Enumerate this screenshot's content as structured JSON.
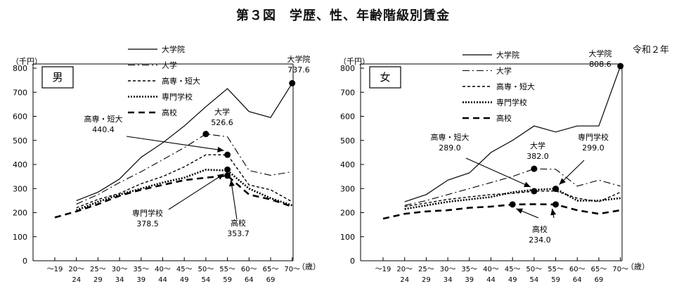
{
  "figure_title": "第３図　学歴、性、年齢階級別賃金",
  "era_label": "令和２年",
  "chart_data": [
    {
      "type": "line",
      "panel_label": "男",
      "ylabel": "（千円）",
      "xlabel": "（歳）",
      "ylim": [
        0,
        800
      ],
      "yticks": [
        0,
        100,
        200,
        300,
        400,
        500,
        600,
        700,
        800
      ],
      "categories": [
        [
          "～19",
          ""
        ],
        [
          "20～",
          "24"
        ],
        [
          "25～",
          "29"
        ],
        [
          "30～",
          "34"
        ],
        [
          "35～",
          "39"
        ],
        [
          "40～",
          "44"
        ],
        [
          "45～",
          "49"
        ],
        [
          "50～",
          "54"
        ],
        [
          "55～",
          "59"
        ],
        [
          "60～",
          "64"
        ],
        [
          "65～",
          "69"
        ],
        [
          "70～",
          ""
        ]
      ],
      "legend": "top",
      "series": [
        {
          "name": "大学院",
          "style": "solid",
          "values": [
            null,
            250,
            285,
            340,
            430,
            490,
            560,
            640,
            715,
            620,
            595,
            737.6
          ]
        },
        {
          "name": "大学",
          "style": "dashdot",
          "values": [
            null,
            235,
            275,
            325,
            370,
            420,
            470,
            526.6,
            515,
            375,
            355,
            370
          ]
        },
        {
          "name": "高専・短大",
          "style": "dash",
          "values": [
            null,
            220,
            255,
            280,
            320,
            350,
            390,
            440.4,
            440,
            315,
            295,
            245
          ]
        },
        {
          "name": "専門学校",
          "style": "dot",
          "values": [
            null,
            210,
            245,
            275,
            300,
            325,
            345,
            378.5,
            375,
            300,
            260,
            230
          ]
        },
        {
          "name": "高校",
          "style": "longdash",
          "values": [
            180,
            205,
            235,
            270,
            295,
            315,
            335,
            345,
            353.7,
            275,
            255,
            225
          ]
        }
      ],
      "annotations": [
        {
          "lines": [
            "大学院",
            "737.6"
          ],
          "cat": 11,
          "value": 737.6,
          "tx": 425,
          "ty": 88,
          "arrow": false
        },
        {
          "lines": [
            "大学",
            "526.6"
          ],
          "cat": 7,
          "value": 526.6,
          "tx": 316,
          "ty": 163,
          "arrow": false
        },
        {
          "lines": [
            "高専・短大",
            "440.4"
          ],
          "cat": 8,
          "value": 440.4,
          "tx": 147,
          "ty": 173,
          "arrow": true,
          "ax": 180,
          "ay": 194
        },
        {
          "lines": [
            "専門学校",
            "378.5"
          ],
          "cat": 8,
          "value": 378.5,
          "tx": 210,
          "ty": 307,
          "arrow": true,
          "ax": 240,
          "ay": 298
        },
        {
          "lines": [
            "高校",
            "353.7"
          ],
          "cat": 8,
          "value": 353.7,
          "tx": 339,
          "ty": 321,
          "arrow": true,
          "ax": 337,
          "ay": 312
        }
      ]
    },
    {
      "type": "line",
      "panel_label": "女",
      "ylabel": "（千円）",
      "xlabel": "（歳）",
      "ylim": [
        0,
        800
      ],
      "yticks": [
        0,
        100,
        200,
        300,
        400,
        500,
        600,
        700,
        800
      ],
      "categories": [
        [
          "～19",
          ""
        ],
        [
          "20～",
          "24"
        ],
        [
          "25～",
          "29"
        ],
        [
          "30～",
          "34"
        ],
        [
          "35～",
          "39"
        ],
        [
          "40～",
          "44"
        ],
        [
          "45～",
          "49"
        ],
        [
          "50～",
          "54"
        ],
        [
          "55～",
          "59"
        ],
        [
          "60～",
          "64"
        ],
        [
          "65～",
          "69"
        ],
        [
          "70～",
          ""
        ]
      ],
      "legend": "top",
      "series": [
        {
          "name": "大学院",
          "style": "solid",
          "values": [
            null,
            245,
            275,
            335,
            365,
            450,
            500,
            560,
            535,
            560,
            560,
            808.6
          ]
        },
        {
          "name": "大学",
          "style": "dashdot",
          "values": [
            null,
            230,
            250,
            275,
            300,
            325,
            350,
            382,
            380,
            310,
            335,
            310
          ]
        },
        {
          "name": "高専・短大",
          "style": "dash",
          "values": [
            null,
            225,
            240,
            255,
            265,
            275,
            280,
            289,
            290,
            260,
            245,
            285
          ]
        },
        {
          "name": "専門学校",
          "style": "dot",
          "values": [
            null,
            215,
            230,
            245,
            255,
            265,
            285,
            295,
            299,
            250,
            250,
            260
          ]
        },
        {
          "name": "高校",
          "style": "longdash",
          "values": [
            175,
            195,
            205,
            210,
            220,
            225,
            234,
            235,
            234,
            210,
            195,
            210
          ]
        }
      ],
      "annotations": [
        {
          "lines": [
            "大学院",
            "808.6"
          ],
          "cat": 11,
          "value": 808.6,
          "tx": 376,
          "ty": 80,
          "arrow": false
        },
        {
          "lines": [
            "大学",
            "382.0"
          ],
          "cat": 7,
          "value": 382.0,
          "tx": 287,
          "ty": 211,
          "arrow": false
        },
        {
          "lines": [
            "高専・短大",
            "289.0"
          ],
          "cat": 7,
          "value": 289.0,
          "tx": 162,
          "ty": 199,
          "arrow": true,
          "ax": 185,
          "ay": 225
        },
        {
          "lines": [
            "専門学校",
            "299.0"
          ],
          "cat": 8,
          "value": 299.0,
          "tx": 366,
          "ty": 199,
          "arrow": true,
          "ax": 353,
          "ay": 228
        },
        {
          "lines": [
            "高校",
            "234.0"
          ],
          "cat": 6,
          "value": 234.0,
          "tx": 290,
          "ty": 330,
          "arrow": true,
          "ax": 288,
          "ay": 310,
          "arrow2cat": 8
        }
      ]
    }
  ]
}
